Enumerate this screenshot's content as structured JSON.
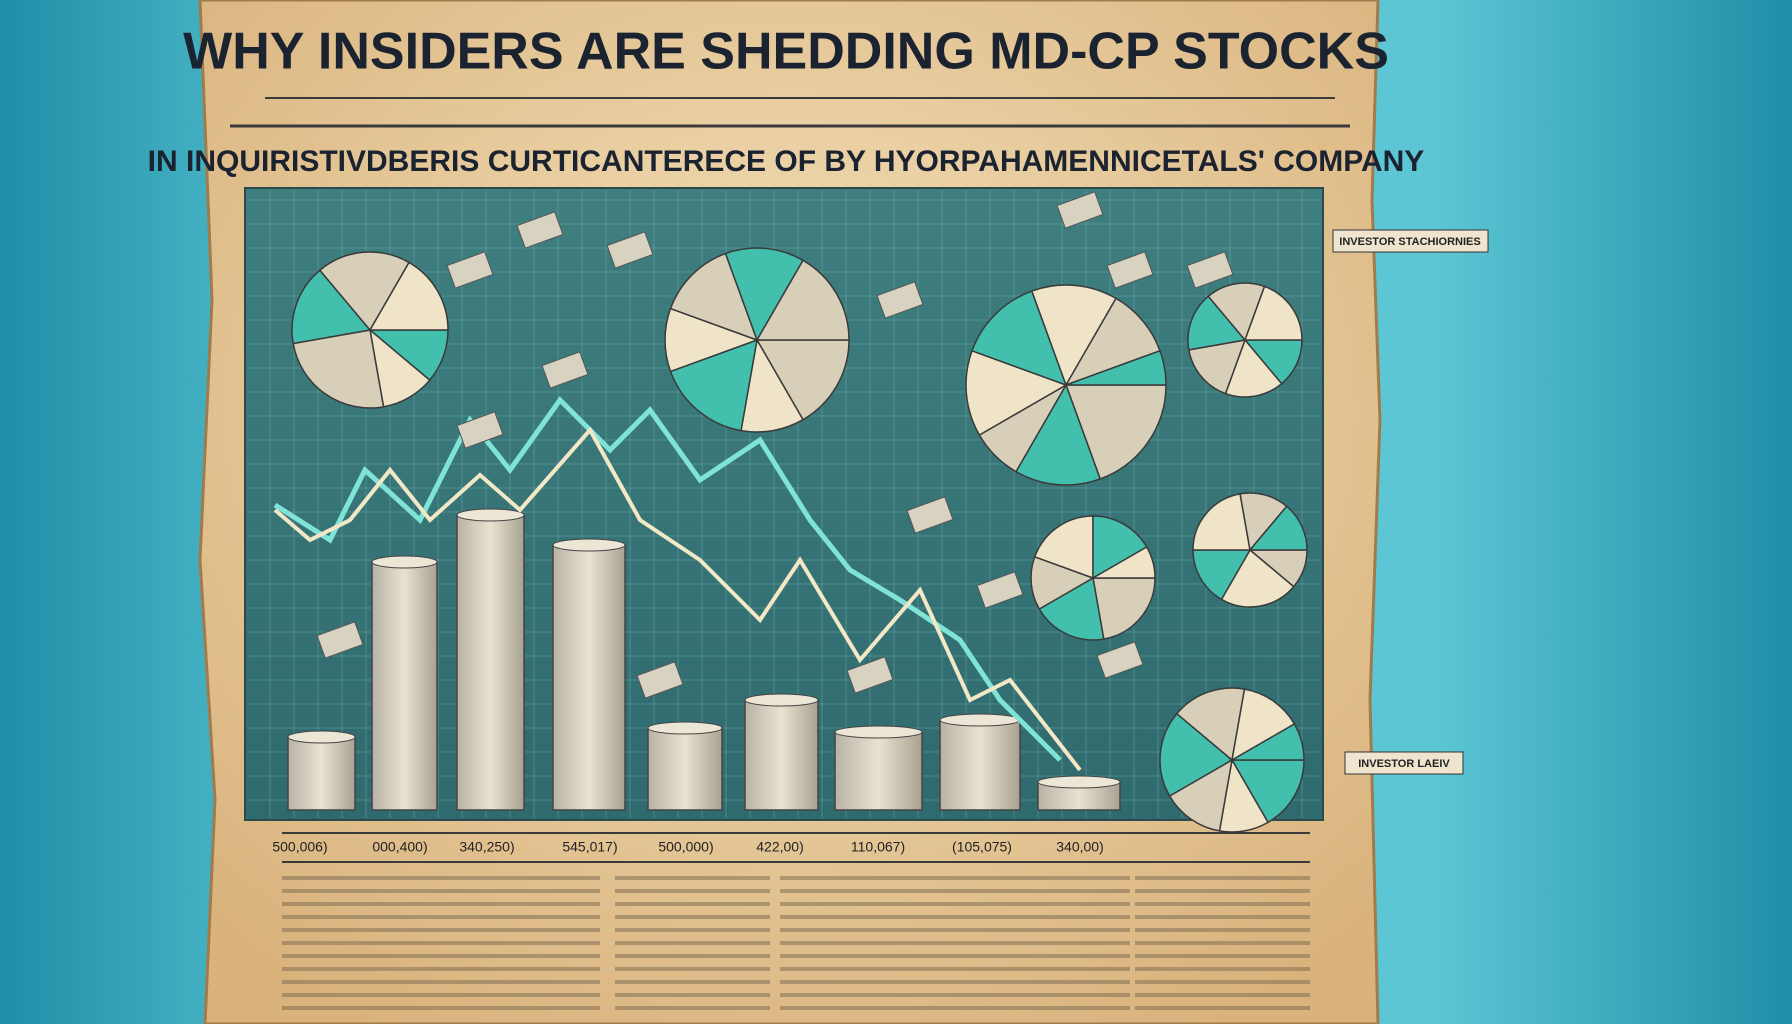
{
  "header": {
    "title": "WHY  INSIDERS ARE  SHEDDING MD-CP STOCKS",
    "subtitle": "IN  INQUIRISTIVDBERIS CURTICANTERECE OF BY HYORPAHAMENNICETALS' COMPANY"
  },
  "panels": {
    "upper_label": "INVESTOR STACHIORNIES",
    "lower_label": "INVESTOR LAEIV"
  },
  "x_labels": [
    "500,006)",
    "000,400)",
    "340,250)",
    "545,017)",
    "500,000)",
    "422,00)",
    "110,067)",
    "(105,075)",
    "340,00)"
  ]
}
